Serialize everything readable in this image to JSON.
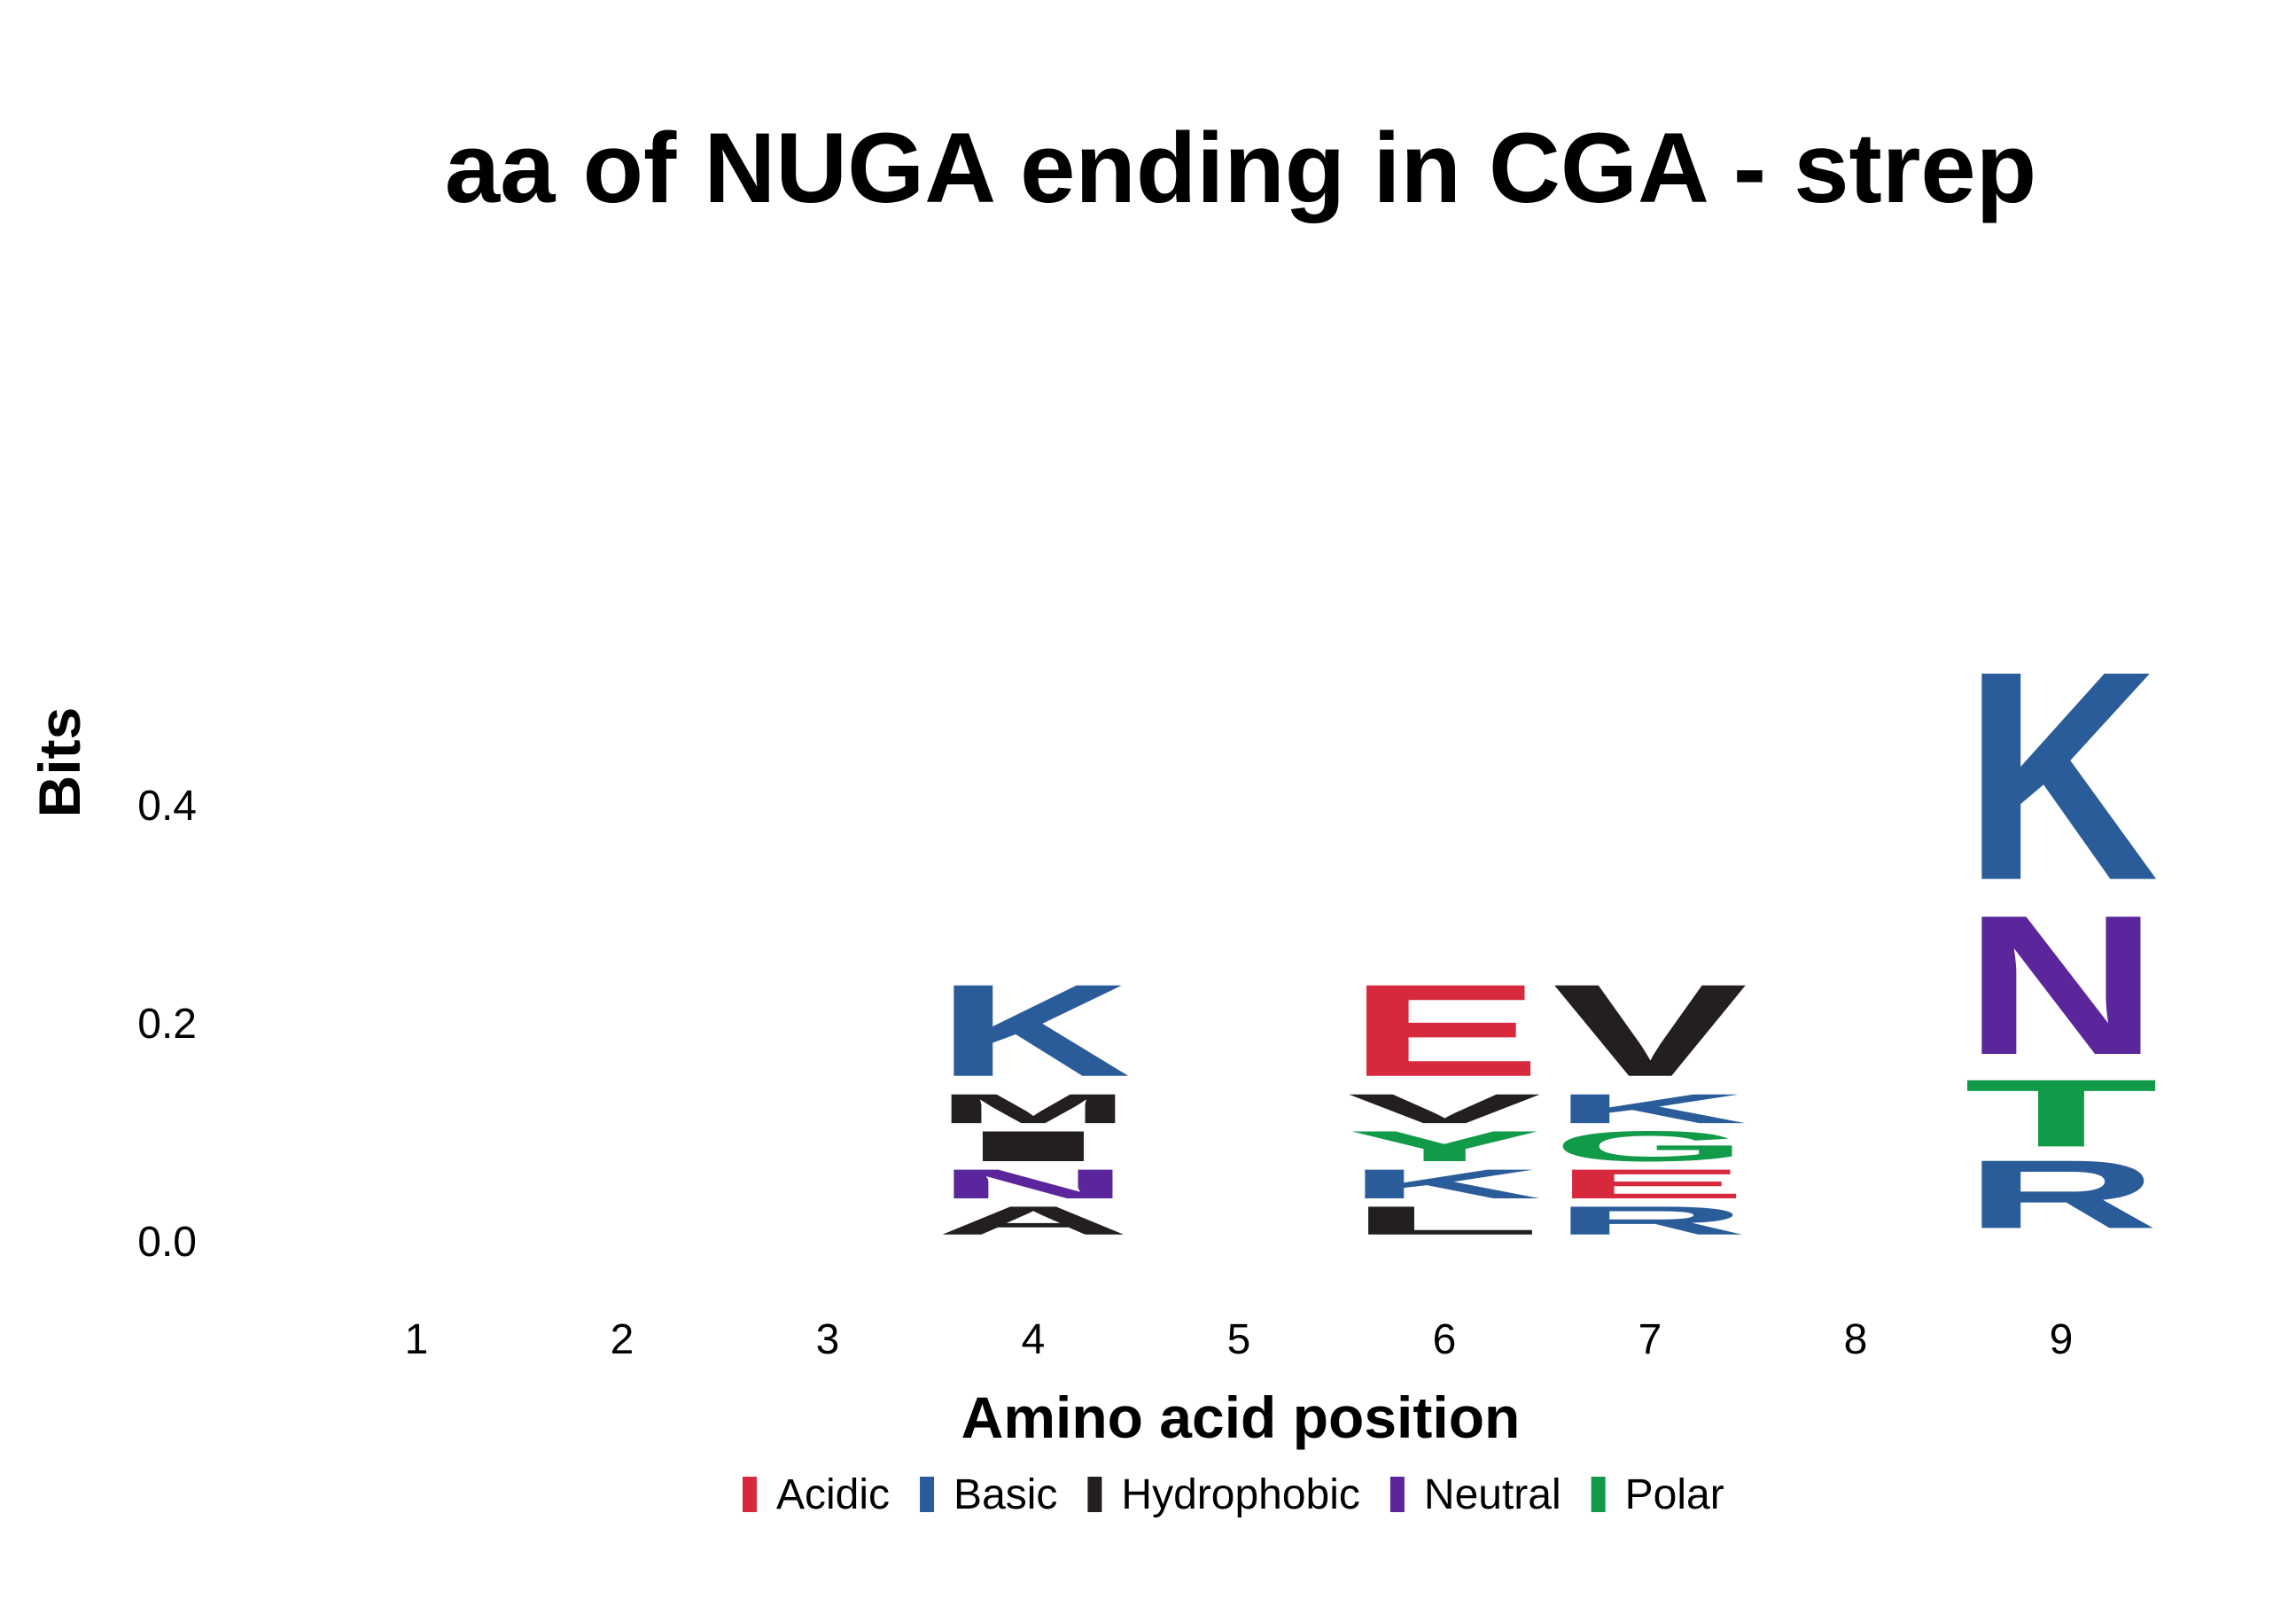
{
  "chart_data": {
    "type": "sequence-logo",
    "title": "aa of NUGA ending in CGA - strep",
    "xlabel": "Amino acid position",
    "ylabel": "Bits",
    "ylim": [
      0,
      0.55
    ],
    "yticks": [
      "0.0",
      "0.2",
      "0.4"
    ],
    "ytick_values": [
      0.0,
      0.2,
      0.4
    ],
    "positions": [
      "1",
      "2",
      "3",
      "4",
      "5",
      "6",
      "7",
      "8",
      "9"
    ],
    "grid": false,
    "legend_position": "bottom",
    "classes": [
      {
        "name": "Acidic",
        "color": "#d62a3c"
      },
      {
        "name": "Basic",
        "color": "#2a5c9a"
      },
      {
        "name": "Hydrophobic",
        "color": "#231f20"
      },
      {
        "name": "Neutral",
        "color": "#5b259b"
      },
      {
        "name": "Polar",
        "color": "#119a48"
      }
    ],
    "stacks": [
      {
        "position": "1",
        "letters": []
      },
      {
        "position": "2",
        "letters": []
      },
      {
        "position": "3",
        "letters": []
      },
      {
        "position": "4",
        "letters": [
          {
            "letter": "A",
            "class": "Hydrophobic",
            "bits": 0.033
          },
          {
            "letter": "N",
            "class": "Neutral",
            "bits": 0.034
          },
          {
            "letter": "I",
            "class": "Hydrophobic",
            "bits": 0.035
          },
          {
            "letter": "M",
            "class": "Hydrophobic",
            "bits": 0.034
          },
          {
            "letter": "K",
            "class": "Basic",
            "bits": 0.1
          }
        ]
      },
      {
        "position": "5",
        "letters": []
      },
      {
        "position": "6",
        "letters": [
          {
            "letter": "L",
            "class": "Hydrophobic",
            "bits": 0.033
          },
          {
            "letter": "K",
            "class": "Basic",
            "bits": 0.034
          },
          {
            "letter": "Y",
            "class": "Polar",
            "bits": 0.035
          },
          {
            "letter": "V",
            "class": "Hydrophobic",
            "bits": 0.034
          },
          {
            "letter": "E",
            "class": "Acidic",
            "bits": 0.1
          }
        ]
      },
      {
        "position": "7",
        "letters": [
          {
            "letter": "R",
            "class": "Basic",
            "bits": 0.033
          },
          {
            "letter": "E",
            "class": "Acidic",
            "bits": 0.034
          },
          {
            "letter": "G",
            "class": "Polar",
            "bits": 0.035
          },
          {
            "letter": "K",
            "class": "Basic",
            "bits": 0.034
          },
          {
            "letter": "V",
            "class": "Hydrophobic",
            "bits": 0.1
          }
        ]
      },
      {
        "position": "8",
        "letters": []
      },
      {
        "position": "9",
        "letters": [
          {
            "letter": "R",
            "class": "Basic",
            "bits": 0.075
          },
          {
            "letter": "T",
            "class": "Polar",
            "bits": 0.074
          },
          {
            "letter": "N",
            "class": "Neutral",
            "bits": 0.15
          },
          {
            "letter": "K",
            "class": "Basic",
            "bits": 0.223
          }
        ]
      }
    ]
  }
}
